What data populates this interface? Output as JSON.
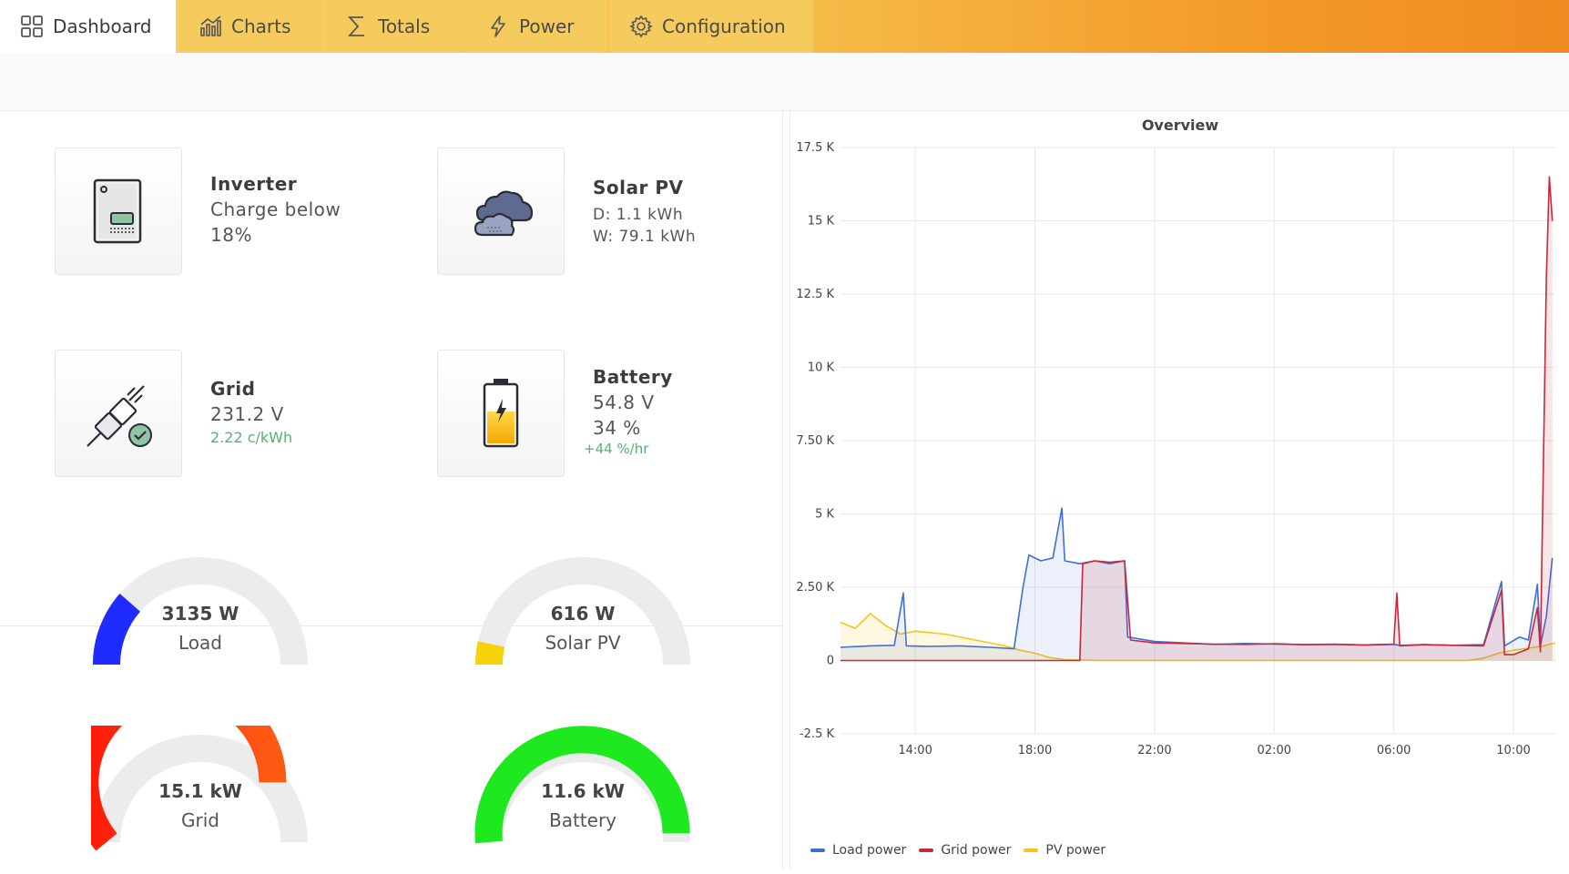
{
  "nav": {
    "tabs": [
      {
        "label": "Dashboard",
        "icon": "dashboard-grid-icon",
        "active": true
      },
      {
        "label": "Charts",
        "icon": "bar-chart-icon"
      },
      {
        "label": "Totals",
        "icon": "sigma-icon"
      },
      {
        "label": "Power",
        "icon": "lightning-icon"
      },
      {
        "label": "Configuration",
        "icon": "gear-icon"
      }
    ]
  },
  "status": {
    "inverter": {
      "title": "Inverter",
      "line1": "Charge below",
      "line2": "18%",
      "icon": "inverter-icon"
    },
    "solar": {
      "title": "Solar PV",
      "line1": "D: 1.1 kWh",
      "line2": "W: 79.1 kWh",
      "icon": "clouds-icon"
    },
    "grid": {
      "title": "Grid",
      "line1": "231.2 V",
      "line2": "2.22 c/kWh",
      "icon": "plug-connected-icon"
    },
    "battery": {
      "title": "Battery",
      "line1": "54.8 V",
      "line2": "34 %",
      "line3": "+44 %/hr",
      "icon": "battery-charging-icon"
    }
  },
  "gauges": {
    "load": {
      "value": "3135 W",
      "label": "Load",
      "fraction": 0.23,
      "color": "#1f2bff"
    },
    "solar": {
      "value": "616 W",
      "label": "Solar PV",
      "fraction": 0.07,
      "color": "#f5d20a"
    },
    "grid": {
      "value": "15.1 kW",
      "label": "Grid",
      "fraction": 0.78,
      "color": "#ff2a10"
    },
    "battery": {
      "value": "11.6 kW",
      "label": "Battery",
      "fraction": 0.97,
      "color": "#1ee81e"
    }
  },
  "chart_data": {
    "type": "line",
    "title": "Overview",
    "ylim": [
      -2500,
      17500
    ],
    "yticks": [
      "-2.5 K",
      "0",
      "2.50 K",
      "5 K",
      "7.50 K",
      "10 K",
      "12.5 K",
      "15 K",
      "17.5 K"
    ],
    "ytick_values": [
      -2500,
      0,
      2500,
      5000,
      7500,
      10000,
      12500,
      15000,
      17500
    ],
    "xticks": [
      "14:00",
      "18:00",
      "22:00",
      "02:00",
      "06:00",
      "10:00"
    ],
    "xtick_hours": [
      14,
      18,
      22,
      26,
      30,
      34
    ],
    "xlim_hours": [
      11.5,
      35.4
    ],
    "grid": true,
    "legend_position": "bottom-left",
    "series": [
      {
        "name": "Load power",
        "color": "#3f6fd6",
        "points": [
          [
            11.5,
            450
          ],
          [
            12.5,
            500
          ],
          [
            13.3,
            520
          ],
          [
            13.6,
            2300
          ],
          [
            13.7,
            500
          ],
          [
            14.5,
            480
          ],
          [
            15.5,
            500
          ],
          [
            16.5,
            450
          ],
          [
            17.3,
            400
          ],
          [
            17.6,
            2500
          ],
          [
            17.8,
            3600
          ],
          [
            18.2,
            3400
          ],
          [
            18.6,
            3500
          ],
          [
            18.9,
            5200
          ],
          [
            19.0,
            3400
          ],
          [
            19.5,
            3300
          ],
          [
            20.0,
            3400
          ],
          [
            20.5,
            3300
          ],
          [
            21.0,
            3400
          ],
          [
            21.1,
            800
          ],
          [
            22.0,
            650
          ],
          [
            23.0,
            600
          ],
          [
            24.0,
            550
          ],
          [
            25.0,
            580
          ],
          [
            26.0,
            560
          ],
          [
            27.0,
            540
          ],
          [
            28.0,
            560
          ],
          [
            29.0,
            530
          ],
          [
            30.0,
            550
          ],
          [
            30.2,
            520
          ],
          [
            31.0,
            540
          ],
          [
            32.0,
            520
          ],
          [
            33.0,
            540
          ],
          [
            33.6,
            2700
          ],
          [
            33.7,
            500
          ],
          [
            34.2,
            800
          ],
          [
            34.5,
            700
          ],
          [
            34.8,
            2600
          ],
          [
            34.9,
            500
          ],
          [
            35.1,
            1500
          ],
          [
            35.3,
            3500
          ]
        ]
      },
      {
        "name": "Grid power",
        "color": "#c8283c",
        "points": [
          [
            11.5,
            0
          ],
          [
            13.0,
            0
          ],
          [
            15.0,
            0
          ],
          [
            17.0,
            0
          ],
          [
            19.5,
            0
          ],
          [
            19.6,
            3300
          ],
          [
            20.0,
            3400
          ],
          [
            20.5,
            3350
          ],
          [
            21.0,
            3400
          ],
          [
            21.2,
            700
          ],
          [
            22.0,
            600
          ],
          [
            23.0,
            580
          ],
          [
            24.0,
            560
          ],
          [
            25.0,
            550
          ],
          [
            26.0,
            570
          ],
          [
            27.0,
            540
          ],
          [
            28.0,
            550
          ],
          [
            29.0,
            530
          ],
          [
            30.0,
            560
          ],
          [
            30.1,
            2300
          ],
          [
            30.2,
            500
          ],
          [
            31.0,
            540
          ],
          [
            32.0,
            520
          ],
          [
            33.0,
            500
          ],
          [
            33.6,
            2400
          ],
          [
            33.7,
            200
          ],
          [
            34.0,
            200
          ],
          [
            34.5,
            400
          ],
          [
            34.8,
            1800
          ],
          [
            34.9,
            300
          ],
          [
            35.1,
            13000
          ],
          [
            35.2,
            16500
          ],
          [
            35.3,
            15000
          ]
        ]
      },
      {
        "name": "PV power",
        "color": "#f5c518",
        "points": [
          [
            11.5,
            1300
          ],
          [
            12.0,
            1100
          ],
          [
            12.5,
            1600
          ],
          [
            13.0,
            1200
          ],
          [
            13.5,
            900
          ],
          [
            14.0,
            1000
          ],
          [
            15.0,
            900
          ],
          [
            16.0,
            700
          ],
          [
            17.0,
            500
          ],
          [
            17.5,
            350
          ],
          [
            18.0,
            250
          ],
          [
            18.5,
            100
          ],
          [
            19.0,
            30
          ],
          [
            20.0,
            0
          ],
          [
            22.0,
            0
          ],
          [
            25.0,
            0
          ],
          [
            28.0,
            0
          ],
          [
            31.0,
            0
          ],
          [
            32.5,
            0
          ],
          [
            33.0,
            80
          ],
          [
            33.5,
            250
          ],
          [
            34.0,
            350
          ],
          [
            34.5,
            420
          ],
          [
            35.0,
            500
          ],
          [
            35.4,
            600
          ]
        ]
      }
    ]
  }
}
